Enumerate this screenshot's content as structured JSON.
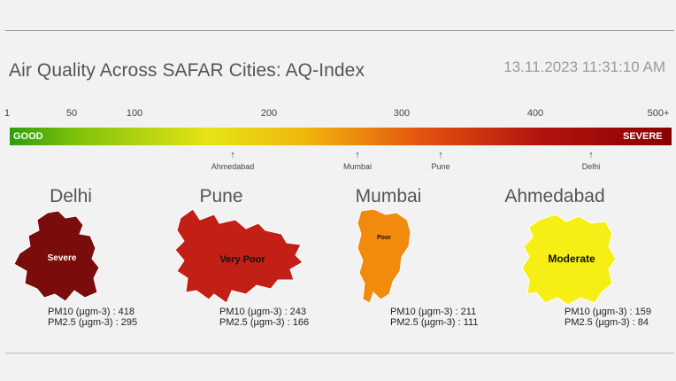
{
  "header": {
    "title": "Air Quality Across SAFAR Cities: AQ-Index",
    "timestamp": "13.11.2023 11:31:10 AM"
  },
  "scale": {
    "ticks": [
      "1",
      "50",
      "100",
      "200",
      "300",
      "400",
      "500+"
    ],
    "min_label": "GOOD",
    "max_label": "SEVERE",
    "markers": [
      "Ahmedabad",
      "Mumbai",
      "Pune",
      "Delhi"
    ]
  },
  "cities": [
    {
      "name": "Delhi",
      "category": "Severe",
      "color": "#7b0c0c",
      "pm10": "PM10 (µgm-3) : 418",
      "pm25": "PM2.5 (µgm-3) : 295"
    },
    {
      "name": "Pune",
      "category": "Very Poor",
      "color": "#c21f16",
      "pm10": "PM10 (µgm-3) : 243",
      "pm25": "PM2.5 (µgm-3) : 166"
    },
    {
      "name": "Mumbai",
      "category": "Poor",
      "color": "#f28a0d",
      "pm10": "PM10 (µgm-3) : 211",
      "pm25": "PM2.5 (µgm-3) : 111"
    },
    {
      "name": "Ahmedabad",
      "category": "Moderate",
      "color": "#f7ee15",
      "pm10": "PM10 (µgm-3) : 159",
      "pm25": "PM2.5 (µgm-3) : 84"
    }
  ]
}
